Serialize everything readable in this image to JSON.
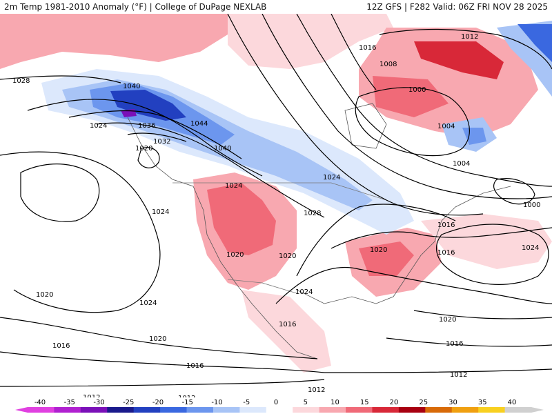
{
  "header": {
    "left": "2m Temp 1981-2010 Anomaly (°F) | College of DuPage NEXLAB",
    "right": "12Z GFS | F282 Valid: 06Z FRI NOV 28 2025"
  },
  "isobar_labels": [
    "1028",
    "1040",
    "1024",
    "1036",
    "1020",
    "1032",
    "1044",
    "1040",
    "1024",
    "1016",
    "1008",
    "1012",
    "1000",
    "1004",
    "1004",
    "1024",
    "1028",
    "1024",
    "1020",
    "1020",
    "1020",
    "1024",
    "1016",
    "1020",
    "1024",
    "1016",
    "1000",
    "1016",
    "1024",
    "1020",
    "1016",
    "1012",
    "1016",
    "1020",
    "1016",
    "1012",
    "1012",
    "1012"
  ],
  "colorbar": {
    "ticks": [
      "-40",
      "-35",
      "-30",
      "-25",
      "-20",
      "-15",
      "-10",
      "-5",
      "0",
      "5",
      "10",
      "15",
      "20",
      "25",
      "30",
      "35",
      "40"
    ],
    "colors": [
      "#e040e0",
      "#b020d0",
      "#7a10b8",
      "#1a1a8c",
      "#2240c0",
      "#3a68e0",
      "#6c96ee",
      "#a8c4f6",
      "#dce8fc",
      "#ffffff",
      "#fcd8dc",
      "#f8a8b0",
      "#f06a78",
      "#d82838",
      "#a80010",
      "#d86a08",
      "#f0a010",
      "#f8d020",
      "#d0d0d0"
    ]
  }
}
